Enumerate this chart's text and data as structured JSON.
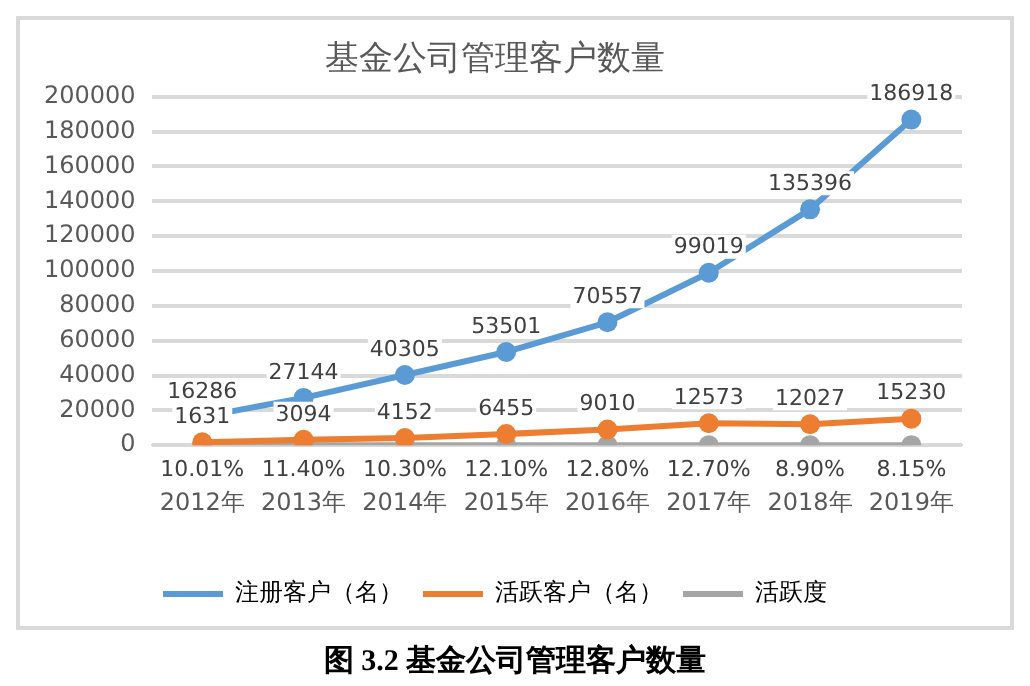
{
  "chart_data": {
    "type": "line",
    "title": "基金公司管理客户数量",
    "annotations": [
      "图 3.2 基金公司管理客户数量"
    ],
    "categories": [
      "2012年",
      "2013年",
      "2014年",
      "2015年",
      "2016年",
      "2017年",
      "2018年",
      "2019年"
    ],
    "series": [
      {
        "name": "注册客户（名）",
        "color": "#5b9bd5",
        "values": [
          16286,
          27144,
          40305,
          53501,
          70557,
          99019,
          135396,
          186918
        ]
      },
      {
        "name": "活跃客户（名）",
        "color": "#ed7d31",
        "values": [
          1631,
          3094,
          4152,
          6455,
          9010,
          12573,
          12027,
          15230
        ]
      },
      {
        "name": "活跃度",
        "color": "#a5a5a5",
        "values": [
          10.01,
          11.4,
          10.3,
          12.1,
          12.8,
          12.7,
          8.9,
          8.15
        ],
        "value_labels": [
          "10.01%",
          "11.40%",
          "10.30%",
          "12.10%",
          "12.80%",
          "12.70%",
          "8.90%",
          "8.15%"
        ]
      }
    ],
    "ylim": [
      0,
      200000
    ],
    "yticks": [
      0,
      20000,
      40000,
      60000,
      80000,
      100000,
      120000,
      140000,
      160000,
      180000,
      200000
    ],
    "grid": "y",
    "legend": "bottom",
    "marker": "circle",
    "line_style": "solid",
    "data_labels": true
  }
}
